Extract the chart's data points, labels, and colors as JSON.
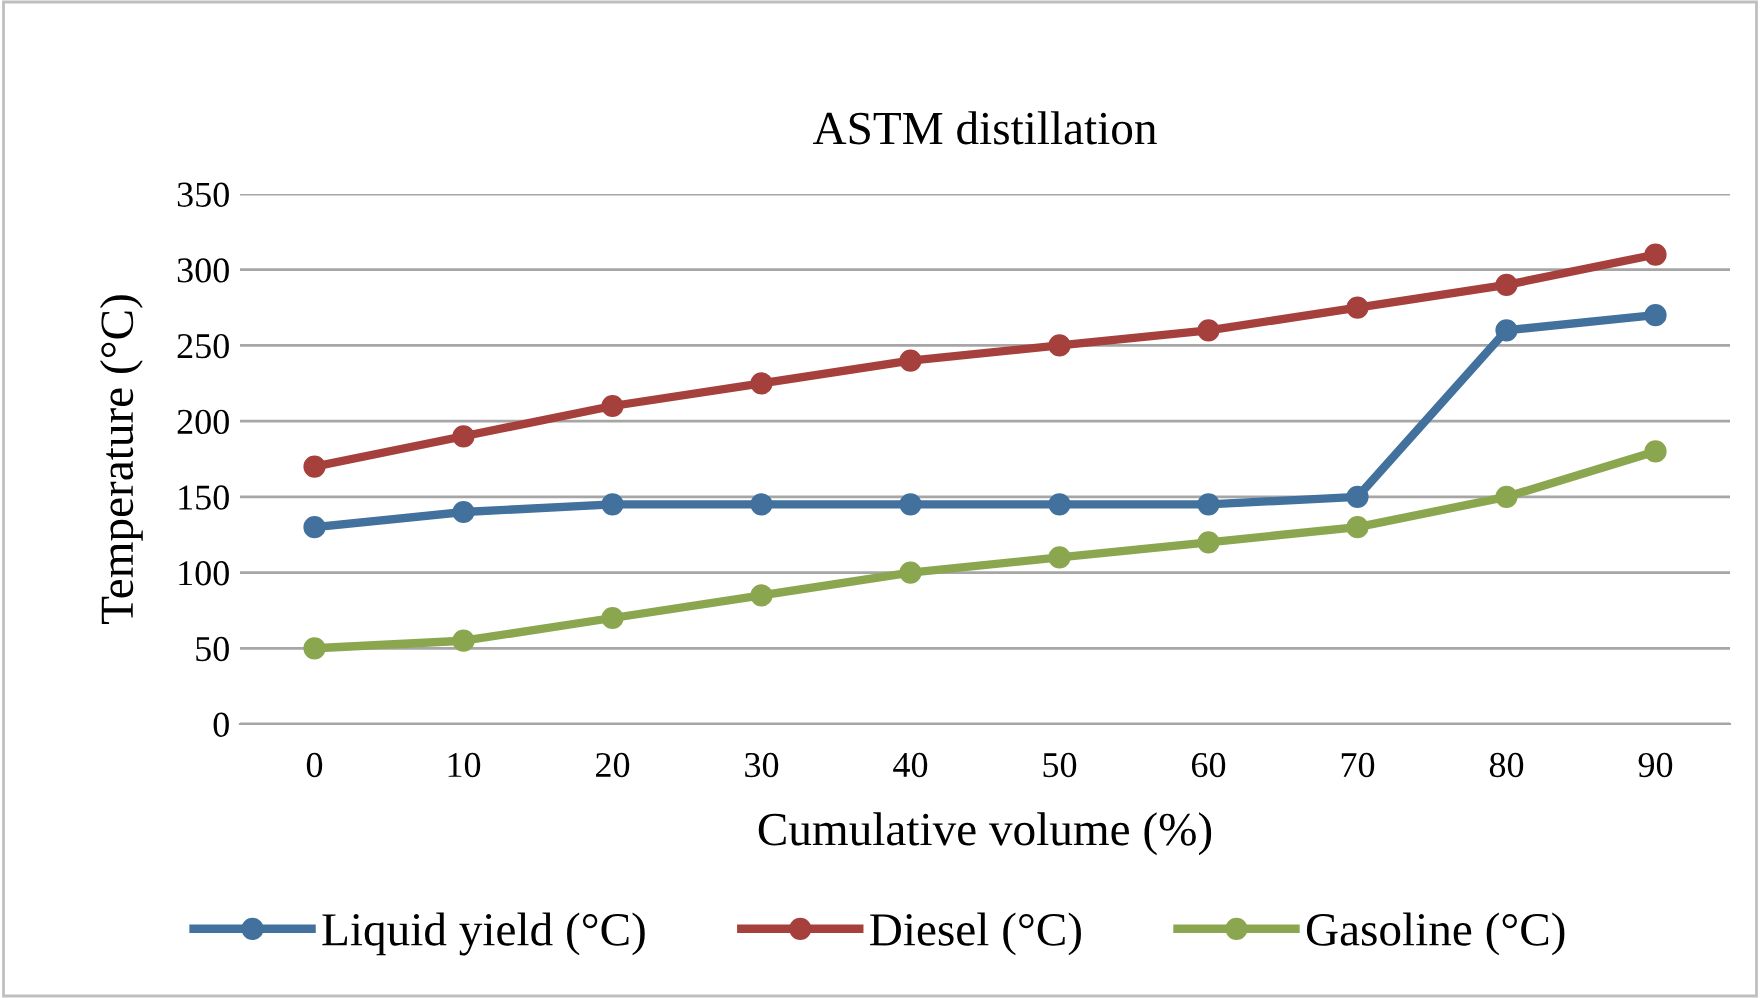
{
  "chart_data": {
    "type": "line",
    "title": "ASTM distillation",
    "xlabel": "Cumulative volume (%)",
    "ylabel": "Temperature (°C)",
    "categories": [
      "0",
      "10",
      "20",
      "30",
      "40",
      "50",
      "60",
      "70",
      "80",
      "90"
    ],
    "series": [
      {
        "name": "Liquid yield (°C)",
        "color": "#41719c",
        "values": [
          130,
          140,
          145,
          145,
          145,
          145,
          145,
          150,
          260,
          270
        ]
      },
      {
        "name": "Diesel (°C)",
        "color": "#a5403c",
        "values": [
          170,
          190,
          210,
          225,
          240,
          250,
          260,
          275,
          290,
          310
        ]
      },
      {
        "name": "Gasoline (°C)",
        "color": "#8aa750",
        "values": [
          50,
          55,
          70,
          85,
          100,
          110,
          120,
          130,
          150,
          180
        ]
      }
    ],
    "ylim": [
      0,
      350
    ],
    "yticks": [
      0,
      50,
      100,
      150,
      200,
      250,
      300,
      350
    ],
    "grid": "y",
    "legend": "bottom",
    "marker": "circle",
    "line_style": "solid"
  }
}
